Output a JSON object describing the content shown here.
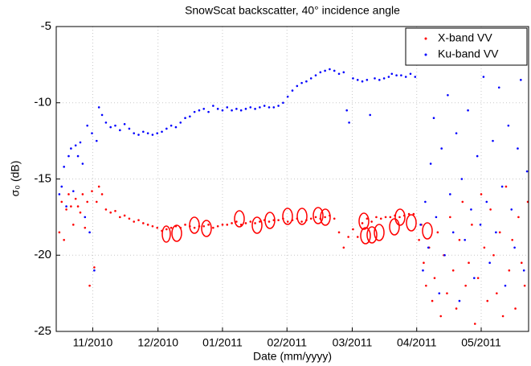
{
  "chart_data": {
    "type": "scatter",
    "title": "SnowScat backscatter, 40° incidence angle",
    "x_label": "Date (mm/yyyy)",
    "y_label": "σ₀ (dB)",
    "xlim": [
      2010.786,
      2011.394
    ],
    "ylim": [
      -25,
      -5
    ],
    "xticks": [
      {
        "value": 2010.833,
        "label": "11/2010"
      },
      {
        "value": 2010.917,
        "label": "12/2010"
      },
      {
        "value": 2011.0,
        "label": "01/2011"
      },
      {
        "value": 2011.083,
        "label": "02/2011"
      },
      {
        "value": 2011.167,
        "label": "03/2011"
      },
      {
        "value": 2011.25,
        "label": "04/2011"
      },
      {
        "value": 2011.333,
        "label": "05/2011"
      }
    ],
    "yticks": [
      -25,
      -20,
      -15,
      -10,
      -5
    ],
    "grid": true,
    "legend": "upper right",
    "series": [
      {
        "name": "X-band VV",
        "color": "#ff0000",
        "x": [
          2010.79,
          2010.793,
          2010.796,
          2010.799,
          2010.802,
          2010.805,
          2010.808,
          2010.811,
          2010.814,
          2010.817,
          2010.82,
          2010.823,
          2010.826,
          2010.829,
          2010.832,
          2010.835,
          2010.838,
          2010.841,
          2010.845,
          2010.85,
          2010.856,
          2010.862,
          2010.868,
          2010.874,
          2010.88,
          2010.886,
          2010.892,
          2010.898,
          2010.904,
          2010.91,
          2010.916,
          2010.922,
          2010.928,
          2010.934,
          2010.94,
          2010.946,
          2010.952,
          2010.958,
          2010.964,
          2010.97,
          2010.976,
          2010.982,
          2010.988,
          2010.994,
          2011.0,
          2011.006,
          2011.012,
          2011.018,
          2011.024,
          2011.03,
          2011.036,
          2011.042,
          2011.048,
          2011.054,
          2011.06,
          2011.066,
          2011.072,
          2011.078,
          2011.084,
          2011.09,
          2011.096,
          2011.102,
          2011.108,
          2011.114,
          2011.12,
          2011.126,
          2011.132,
          2011.138,
          2011.144,
          2011.15,
          2011.156,
          2011.162,
          2011.168,
          2011.174,
          2011.18,
          2011.186,
          2011.192,
          2011.198,
          2011.204,
          2011.21,
          2011.216,
          2011.222,
          2011.228,
          2011.234,
          2011.24,
          2011.246,
          2011.253,
          2011.256,
          2011.259,
          2011.262,
          2011.266,
          2011.27,
          2011.273,
          2011.277,
          2011.281,
          2011.285,
          2011.289,
          2011.293,
          2011.297,
          2011.301,
          2011.305,
          2011.309,
          2011.313,
          2011.317,
          2011.321,
          2011.325,
          2011.329,
          2011.333,
          2011.337,
          2011.341,
          2011.345,
          2011.349,
          2011.353,
          2011.357,
          2011.361,
          2011.365,
          2011.369,
          2011.373,
          2011.377,
          2011.381,
          2011.385,
          2011.389,
          2011.393
        ],
        "values": [
          -18.5,
          -16.5,
          -19.0,
          -17.0,
          -16.0,
          -16.8,
          -18.0,
          -16.3,
          -16.8,
          -17.2,
          -16.0,
          -18.2,
          -16.5,
          -22.0,
          -15.8,
          -20.8,
          -16.5,
          -15.5,
          -16.0,
          -17.0,
          -17.2,
          -17.1,
          -17.5,
          -17.4,
          -17.6,
          -17.8,
          -17.7,
          -17.9,
          -18.0,
          -18.1,
          -18.2,
          -18.4,
          -18.3,
          -18.2,
          -18.1,
          -18.2,
          -18.0,
          -18.1,
          -18.2,
          -18.1,
          -18.1,
          -18.0,
          -18.2,
          -18.1,
          -18.0,
          -18.0,
          -17.9,
          -17.8,
          -18.0,
          -17.9,
          -17.8,
          -17.9,
          -17.8,
          -17.7,
          -17.8,
          -17.7,
          -17.7,
          -17.6,
          -17.8,
          -17.7,
          -17.6,
          -17.8,
          -17.7,
          -17.6,
          -17.5,
          -17.6,
          -17.5,
          -17.4,
          -17.6,
          -18.5,
          -19.5,
          -18.8,
          -18.3,
          -18.8,
          -17.9,
          -17.6,
          -17.8,
          -17.5,
          -17.6,
          -17.5,
          -17.5,
          -17.4,
          -17.5,
          -17.4,
          -17.3,
          -17.3,
          -19.0,
          -18.0,
          -20.5,
          -22.0,
          -19.5,
          -23.0,
          -21.5,
          -18.5,
          -24.0,
          -20.0,
          -22.5,
          -17.5,
          -21.0,
          -23.5,
          -19.0,
          -16.5,
          -22.0,
          -20.5,
          -18.0,
          -24.5,
          -21.5,
          -16.0,
          -19.5,
          -23.0,
          -17.0,
          -20.0,
          -22.5,
          -18.5,
          -24.0,
          -15.5,
          -21.0,
          -19.0,
          -23.5,
          -17.5,
          -20.5,
          -22.0,
          -16.5
        ]
      },
      {
        "name": "Ku-band VV",
        "color": "#0000ff",
        "x": [
          2010.79,
          2010.793,
          2010.796,
          2010.799,
          2010.802,
          2010.805,
          2010.808,
          2010.811,
          2010.814,
          2010.817,
          2010.82,
          2010.823,
          2010.826,
          2010.829,
          2010.832,
          2010.835,
          2010.838,
          2010.841,
          2010.845,
          2010.85,
          2010.856,
          2010.862,
          2010.868,
          2010.874,
          2010.88,
          2010.886,
          2010.892,
          2010.898,
          2010.904,
          2010.91,
          2010.916,
          2010.922,
          2010.928,
          2010.934,
          2010.94,
          2010.946,
          2010.952,
          2010.958,
          2010.964,
          2010.97,
          2010.976,
          2010.982,
          2010.988,
          2010.994,
          2011.0,
          2011.006,
          2011.012,
          2011.018,
          2011.024,
          2011.03,
          2011.036,
          2011.042,
          2011.048,
          2011.054,
          2011.06,
          2011.066,
          2011.072,
          2011.078,
          2011.084,
          2011.09,
          2011.096,
          2011.102,
          2011.108,
          2011.114,
          2011.12,
          2011.126,
          2011.132,
          2011.138,
          2011.144,
          2011.15,
          2011.156,
          2011.16,
          2011.163,
          2011.168,
          2011.174,
          2011.18,
          2011.186,
          2011.19,
          2011.196,
          2011.202,
          2011.208,
          2011.214,
          2011.218,
          2011.224,
          2011.23,
          2011.236,
          2011.242,
          2011.248,
          2011.255,
          2011.258,
          2011.261,
          2011.265,
          2011.268,
          2011.272,
          2011.275,
          2011.279,
          2011.282,
          2011.286,
          2011.29,
          2011.293,
          2011.297,
          2011.301,
          2011.305,
          2011.308,
          2011.312,
          2011.316,
          2011.32,
          2011.324,
          2011.328,
          2011.332,
          2011.336,
          2011.34,
          2011.344,
          2011.348,
          2011.352,
          2011.356,
          2011.36,
          2011.364,
          2011.368,
          2011.372,
          2011.376,
          2011.38,
          2011.384,
          2011.388,
          2011.392
        ],
        "values": [
          -16.0,
          -15.5,
          -14.2,
          -16.8,
          -13.5,
          -13.0,
          -15.8,
          -12.8,
          -13.5,
          -12.6,
          -14.0,
          -17.5,
          -11.5,
          -18.5,
          -12.0,
          -21.0,
          -12.5,
          -10.3,
          -10.8,
          -11.3,
          -11.6,
          -11.5,
          -11.8,
          -11.4,
          -11.7,
          -12.0,
          -12.1,
          -11.9,
          -12.0,
          -12.1,
          -12.0,
          -11.9,
          -11.7,
          -11.5,
          -11.6,
          -11.3,
          -11.0,
          -10.9,
          -10.6,
          -10.5,
          -10.4,
          -10.6,
          -10.2,
          -10.4,
          -10.5,
          -10.3,
          -10.5,
          -10.4,
          -10.5,
          -10.4,
          -10.3,
          -10.4,
          -10.3,
          -10.2,
          -10.3,
          -10.3,
          -10.2,
          -10.0,
          -9.6,
          -9.2,
          -8.9,
          -8.7,
          -8.6,
          -8.4,
          -8.2,
          -8.0,
          -7.9,
          -7.8,
          -7.9,
          -8.1,
          -8.0,
          -10.5,
          -11.3,
          -8.4,
          -8.5,
          -8.6,
          -8.5,
          -10.8,
          -8.4,
          -8.5,
          -8.4,
          -8.3,
          -8.1,
          -8.2,
          -8.2,
          -8.3,
          -8.1,
          -8.3,
          -18.0,
          -21.0,
          -16.5,
          -19.5,
          -14.0,
          -11.0,
          -17.5,
          -22.5,
          -13.0,
          -20.0,
          -9.5,
          -16.0,
          -18.5,
          -12.0,
          -23.0,
          -15.0,
          -19.0,
          -10.5,
          -17.0,
          -21.5,
          -13.5,
          -18.0,
          -8.3,
          -16.5,
          -20.5,
          -12.5,
          -18.5,
          -9.0,
          -15.5,
          -22.0,
          -11.5,
          -17.0,
          -19.5,
          -13.0,
          -8.5,
          -21.0,
          -14.5
        ]
      }
    ]
  }
}
